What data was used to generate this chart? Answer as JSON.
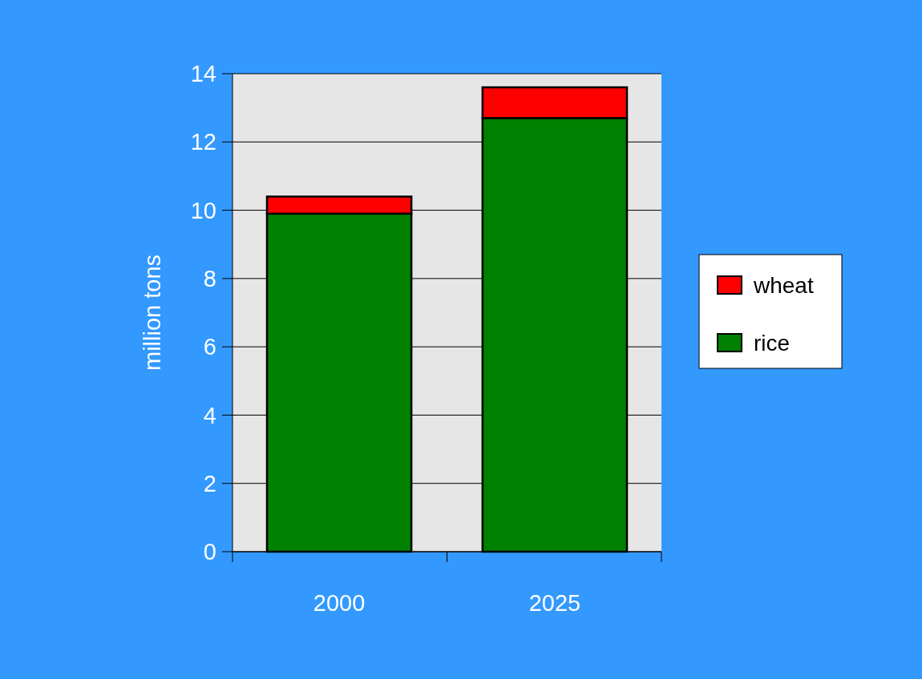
{
  "chart_data": {
    "type": "bar",
    "stacked": true,
    "categories": [
      "2000",
      "2025"
    ],
    "ylabel": "million tons",
    "ylim": [
      0,
      14
    ],
    "yticks": [
      0,
      2,
      4,
      6,
      8,
      10,
      12,
      14
    ],
    "grid": "y",
    "legend": "right",
    "series": [
      {
        "name": "rice",
        "color": "#008000",
        "values": [
          9.9,
          12.7
        ]
      },
      {
        "name": "wheat",
        "color": "#ff0000",
        "values": [
          0.5,
          0.9
        ]
      }
    ]
  }
}
